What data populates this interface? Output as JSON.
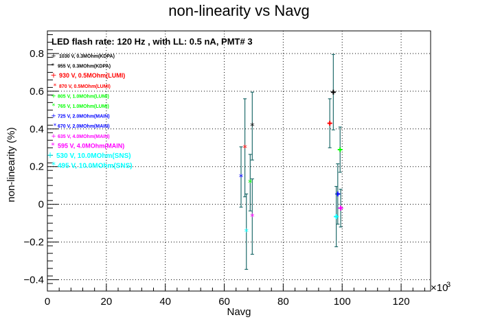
{
  "chart_data": {
    "type": "scatter",
    "title": "non-linearity vs Navg",
    "xlabel": "Navg",
    "ylabel": "non-linearity (%)",
    "x_exponent_label": "×10",
    "x_exponent_power": "3",
    "annotation": "LED flash rate: 120 Hz , with LL: 0.5 nA, PMT# 3",
    "xlim": [
      0,
      130000
    ],
    "ylim": [
      -0.46,
      0.92
    ],
    "x_ticks": [
      0,
      20000,
      40000,
      60000,
      80000,
      100000,
      120000
    ],
    "x_tick_labels": [
      "0",
      "20",
      "40",
      "60",
      "80",
      "100",
      "120"
    ],
    "y_ticks": [
      -0.4,
      -0.2,
      0,
      0.2,
      0.4,
      0.6,
      0.8
    ],
    "y_tick_labels": [
      "−0.4",
      "−0.2",
      "0",
      "0.2",
      "0.4",
      "0.6",
      "0.8"
    ],
    "grid": true,
    "legend_placement": "top-left",
    "series": [
      {
        "name": "1030 V, 0.3MOhm(KDPA)",
        "color": "#000000",
        "points": [
          {
            "x": 97000,
            "y": 0.595,
            "err": 0.2
          }
        ]
      },
      {
        "name": "955 V, 0.3MOhm(KDPA)",
        "color": "#000000",
        "points": [
          {
            "x": 69500,
            "y": 0.415,
            "err": 0.18
          }
        ]
      },
      {
        "name": "930 V, 0.5MOhm(LUMI)",
        "color": "#ff0000",
        "points": [
          {
            "x": 95800,
            "y": 0.43,
            "err": 0.13
          }
        ]
      },
      {
        "name": "870 V, 0.5MOhm(LUMI)",
        "color": "#ff0000",
        "points": [
          {
            "x": 67000,
            "y": 0.3,
            "err": 0.26
          }
        ]
      },
      {
        "name": "805 V, 1.0MOhm(LUMI)",
        "color": "#00ff00",
        "points": [
          {
            "x": 99300,
            "y": 0.29,
            "err": 0.12
          }
        ]
      },
      {
        "name": "765 V, 1.0MOhm(LUMI)",
        "color": "#00ff00",
        "points": [
          {
            "x": 68800,
            "y": 0.115,
            "err": 0.15
          }
        ]
      },
      {
        "name": "725 V, 2.0MOhm(MAIN)",
        "color": "#0000ff",
        "points": [
          {
            "x": 98500,
            "y": 0.055,
            "err": 0.16
          }
        ]
      },
      {
        "name": "670 V, 2.0MOhm(MAIN)",
        "color": "#0000ff",
        "points": [
          {
            "x": 65700,
            "y": 0.145,
            "err": 0.16
          }
        ]
      },
      {
        "name": "635 V, 4.0MOhm(MAIN)",
        "color": "#ff00ff",
        "points": [
          {
            "x": 99500,
            "y": -0.02,
            "err": 0.1
          }
        ]
      },
      {
        "name": "595 V, 4.0MOhm(MAIN)",
        "color": "#ff00ff",
        "points": [
          {
            "x": 69500,
            "y": -0.065,
            "err": 0.2
          }
        ]
      },
      {
        "name": "530 V, 10.0MOhm(SNS)",
        "color": "#00ffff",
        "points": [
          {
            "x": 98000,
            "y": -0.065,
            "err": 0.16
          }
        ]
      },
      {
        "name": "495 V, 10.0MOhm(SNS)",
        "color": "#00ffff",
        "points": [
          {
            "x": 67500,
            "y": -0.145,
            "err": 0.2
          }
        ]
      }
    ]
  }
}
